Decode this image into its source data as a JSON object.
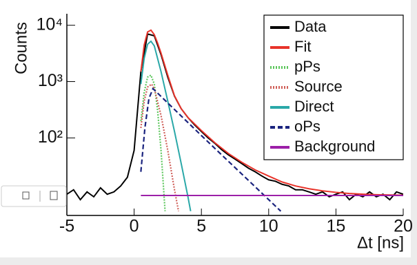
{
  "chart_data": {
    "type": "line",
    "xlabel": "Δt [ns]",
    "ylabel": "Counts",
    "xlim": [
      -5,
      20
    ],
    "xticks": [
      -5,
      0,
      5,
      10,
      15,
      20
    ],
    "ylim": [
      4.2,
      16000
    ],
    "log_y": true,
    "yticks": [
      {
        "value": 100,
        "label": "10²"
      },
      {
        "value": 1000,
        "label": "10³"
      },
      {
        "value": 10000,
        "label": "10⁴"
      }
    ],
    "legend": "upper right",
    "series": [
      {
        "name": "Data",
        "color": "#000000",
        "line_style": "solid",
        "x": [
          -5,
          -4.5,
          -4,
          -3.5,
          -3,
          -2.5,
          -2,
          -1.5,
          -1,
          -0.5,
          0,
          0.5,
          1,
          1.5,
          2,
          2.5,
          3,
          3.5,
          4,
          4.5,
          5,
          5.5,
          6,
          6.5,
          7,
          7.5,
          8,
          8.5,
          9,
          9.5,
          10,
          10.5,
          11,
          11.5,
          12,
          12.5,
          13,
          13.5,
          14,
          14.5,
          15,
          15.5,
          16,
          16.5,
          17,
          17.5,
          18,
          18.5,
          19,
          19.5,
          20
        ],
        "values": [
          10,
          12,
          8,
          11,
          9,
          13,
          10,
          11,
          14,
          20,
          60,
          1500,
          7000,
          6500,
          3000,
          1200,
          550,
          330,
          230,
          170,
          130,
          100,
          80,
          62,
          50,
          42,
          35,
          29,
          25,
          21,
          18,
          17,
          15,
          14,
          12,
          12,
          11,
          10,
          11,
          9,
          10,
          11,
          8,
          10,
          9,
          11,
          9,
          10,
          8,
          11,
          10
        ]
      },
      {
        "name": "Fit",
        "color": "#e8332a",
        "line_style": "solid",
        "x": [
          0.5,
          0.75,
          1,
          1.25,
          1.5,
          1.75,
          2,
          2.5,
          3,
          3.5,
          4,
          5,
          6,
          7,
          8,
          9,
          10,
          11,
          12,
          13,
          14,
          15,
          16,
          17,
          18,
          19,
          20
        ],
        "values": [
          1500,
          4500,
          7600,
          8200,
          6800,
          4800,
          3200,
          1300,
          560,
          330,
          230,
          135,
          82,
          53,
          37,
          27,
          21,
          16.5,
          14,
          12.5,
          11.5,
          10.8,
          10.3,
          10,
          9.8,
          9.7,
          9.6
        ]
      },
      {
        "name": "pPs",
        "color": "#5cc65c",
        "line_style": "dotted",
        "x": [
          0.5,
          0.75,
          1,
          1.25,
          1.5,
          1.75,
          2,
          2.3
        ],
        "values": [
          200,
          650,
          1200,
          1300,
          900,
          300,
          60,
          5
        ]
      },
      {
        "name": "Source",
        "color": "#d0605a",
        "line_style": "dotted",
        "x": [
          0.5,
          0.75,
          1,
          1.3,
          1.5,
          2,
          2.5,
          3,
          3.3
        ],
        "values": [
          150,
          450,
          800,
          900,
          750,
          250,
          60,
          12,
          5
        ]
      },
      {
        "name": "Direct",
        "color": "#2aa8a8",
        "line_style": "solid",
        "x": [
          0.5,
          0.75,
          1,
          1.25,
          1.5,
          2,
          2.5,
          3,
          3.5,
          4,
          4.2
        ],
        "values": [
          900,
          2600,
          4600,
          5200,
          4300,
          1500,
          450,
          130,
          35,
          9,
          5
        ]
      },
      {
        "name": "oPs",
        "color": "#1a237e",
        "line_style": "dashed",
        "x": [
          0.5,
          0.8,
          1.1,
          1.4,
          5,
          10.9
        ],
        "values": [
          25,
          150,
          500,
          750,
          110,
          5
        ]
      },
      {
        "name": "Background",
        "color": "#9c1fa8",
        "line_style": "solid",
        "x": [
          0.5,
          20
        ],
        "values": [
          9.5,
          9.5
        ]
      }
    ]
  }
}
